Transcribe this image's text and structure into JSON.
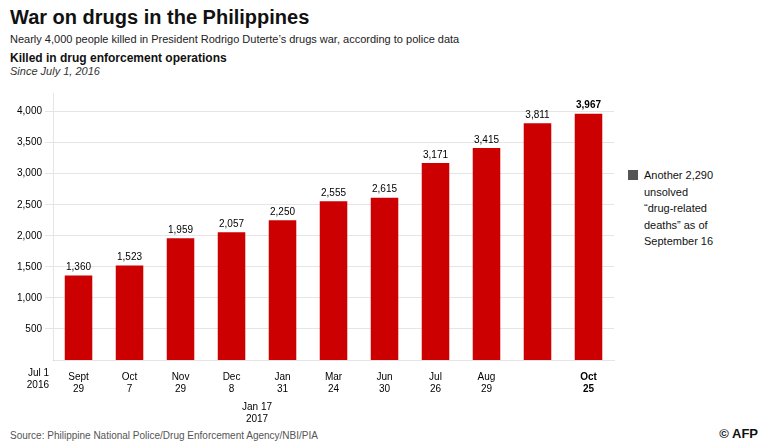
{
  "chart_data": {
    "type": "bar",
    "title": "War on drugs in the Philippines",
    "subtitle": "Nearly 4,000 people killed in President Rodrigo Duterte’s drugs war, according to police data",
    "annotations": [
      "Killed in drug enforcement operations",
      "Since July 1, 2016",
      "Jul 1\n2016",
      "Jan 17\n2017",
      "Another 2,290\nunsolved\n“drug-related\ndeaths” as of\nSeptember 16",
      "Source: Philippine National Police/Drug Enforcement Agency/NBI/PIA",
      "© AFP"
    ],
    "categories": [
      "Sept\n29",
      "Oct\n7",
      "Nov\n29",
      "Dec\n8",
      "Jan\n31",
      "Mar\n24",
      "Jun\n30",
      "Jul\n26",
      "Aug\n29",
      null,
      "Oct\n25"
    ],
    "values": [
      1360,
      1523,
      1959,
      2057,
      2250,
      2555,
      2615,
      3171,
      3415,
      3811,
      3967
    ],
    "value_labels": [
      "1,360",
      "1,523",
      "1,959",
      "2,057",
      "2,250",
      "2,555",
      "2,615",
      "3,171",
      "3,415",
      "3,811",
      "3,967"
    ],
    "data_labels": true,
    "color": "#cc0000",
    "ylim": [
      0,
      4300
    ],
    "yticks": [
      500,
      {
        "value": 1000,
        "label": "1,000"
      },
      {
        "value": 1500,
        "label": "1,500"
      },
      {
        "value": 2000,
        "label": "2,000"
      },
      {
        "value": 2500,
        "label": "2,500"
      },
      {
        "value": 3000,
        "label": "3,000"
      },
      {
        "value": 3500,
        "label": "3,500"
      },
      {
        "value": 4000,
        "label": "4,000"
      }
    ],
    "grid": true
  }
}
